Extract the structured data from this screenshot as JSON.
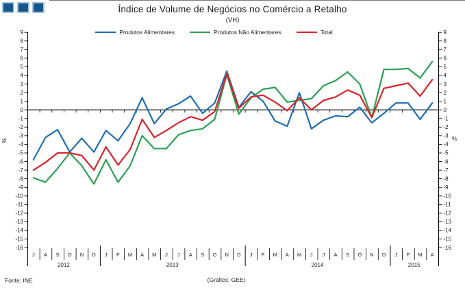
{
  "header": {
    "title": "Índice de Volume de Negócios no Comércio a Retalho",
    "subtitle": "(VH)"
  },
  "footer": {
    "source": "Fonte: INE",
    "credit": "(Gráfico: GEE)"
  },
  "colors": {
    "logo_fill": "#15568c",
    "logo_border": "#a9c6de",
    "axis": "#000000",
    "blue": "#1f6eb4",
    "green": "#2aa053",
    "red": "#d8232a"
  },
  "chart_data": {
    "type": "line",
    "title": "Índice de Volume de Negócios no Comércio a Retalho",
    "subtitle": "(VH)",
    "ylabel_left": "%",
    "ylabel_right": "%",
    "ylim": [
      -16,
      9
    ],
    "ytick_step": 1,
    "grid": false,
    "legend_position": "top",
    "x_months": [
      "J",
      "A",
      "S",
      "O",
      "N",
      "D",
      "J",
      "F",
      "M",
      "A",
      "M",
      "J",
      "J",
      "A",
      "S",
      "O",
      "N",
      "D",
      "J",
      "F",
      "M",
      "A",
      "M",
      "J",
      "J",
      "A",
      "S",
      "O",
      "N",
      "D",
      "J",
      "F",
      "M",
      "A"
    ],
    "years": [
      {
        "label": "2012",
        "months": 6
      },
      {
        "label": "2013",
        "months": 12
      },
      {
        "label": "2014",
        "months": 12
      },
      {
        "label": "2015",
        "months": 4
      }
    ],
    "series": [
      {
        "id": "alimentares",
        "name": "Produtos Alimentares",
        "color": "#1f6eb4",
        "values": [
          -5.8,
          -3.2,
          -2.3,
          -4.9,
          -3.3,
          -4.9,
          -2.4,
          -3.6,
          -1.6,
          1.4,
          -1.6,
          0.1,
          0.7,
          1.6,
          -0.4,
          0.8,
          4.5,
          0.3,
          2.1,
          1.0,
          -1.3,
          -1.9,
          2.0,
          -2.2,
          -1.2,
          -0.7,
          -0.8,
          0.3,
          -1.5,
          -0.4,
          0.8,
          0.8,
          -1.1,
          0.8
        ]
      },
      {
        "id": "nao-alimentares",
        "name": "Produtos Não Alimentares",
        "color": "#2aa053",
        "values": [
          -7.9,
          -8.4,
          -6.8,
          -5.0,
          -6.5,
          -8.6,
          -5.8,
          -8.4,
          -6.5,
          -3.0,
          -4.5,
          -4.5,
          -2.9,
          -2.4,
          -2.2,
          -1.1,
          4.1,
          -0.5,
          1.4,
          2.4,
          2.6,
          0.9,
          1.1,
          1.3,
          2.8,
          3.4,
          4.4,
          3.0,
          -0.9,
          4.7,
          4.7,
          4.8,
          3.7,
          5.6
        ]
      },
      {
        "id": "total",
        "name": "Total",
        "color": "#d8232a",
        "values": [
          -7.0,
          -6.1,
          -5.0,
          -5.0,
          -5.3,
          -7.0,
          -4.3,
          -6.4,
          -4.6,
          -1.1,
          -3.2,
          -2.4,
          -1.5,
          -0.8,
          -1.2,
          -0.2,
          4.2,
          0.2,
          1.5,
          1.7,
          0.9,
          -0.1,
          1.4,
          0.0,
          1.1,
          1.5,
          2.3,
          1.7,
          -0.9,
          2.5,
          2.8,
          3.1,
          1.6,
          3.5
        ]
      }
    ]
  }
}
